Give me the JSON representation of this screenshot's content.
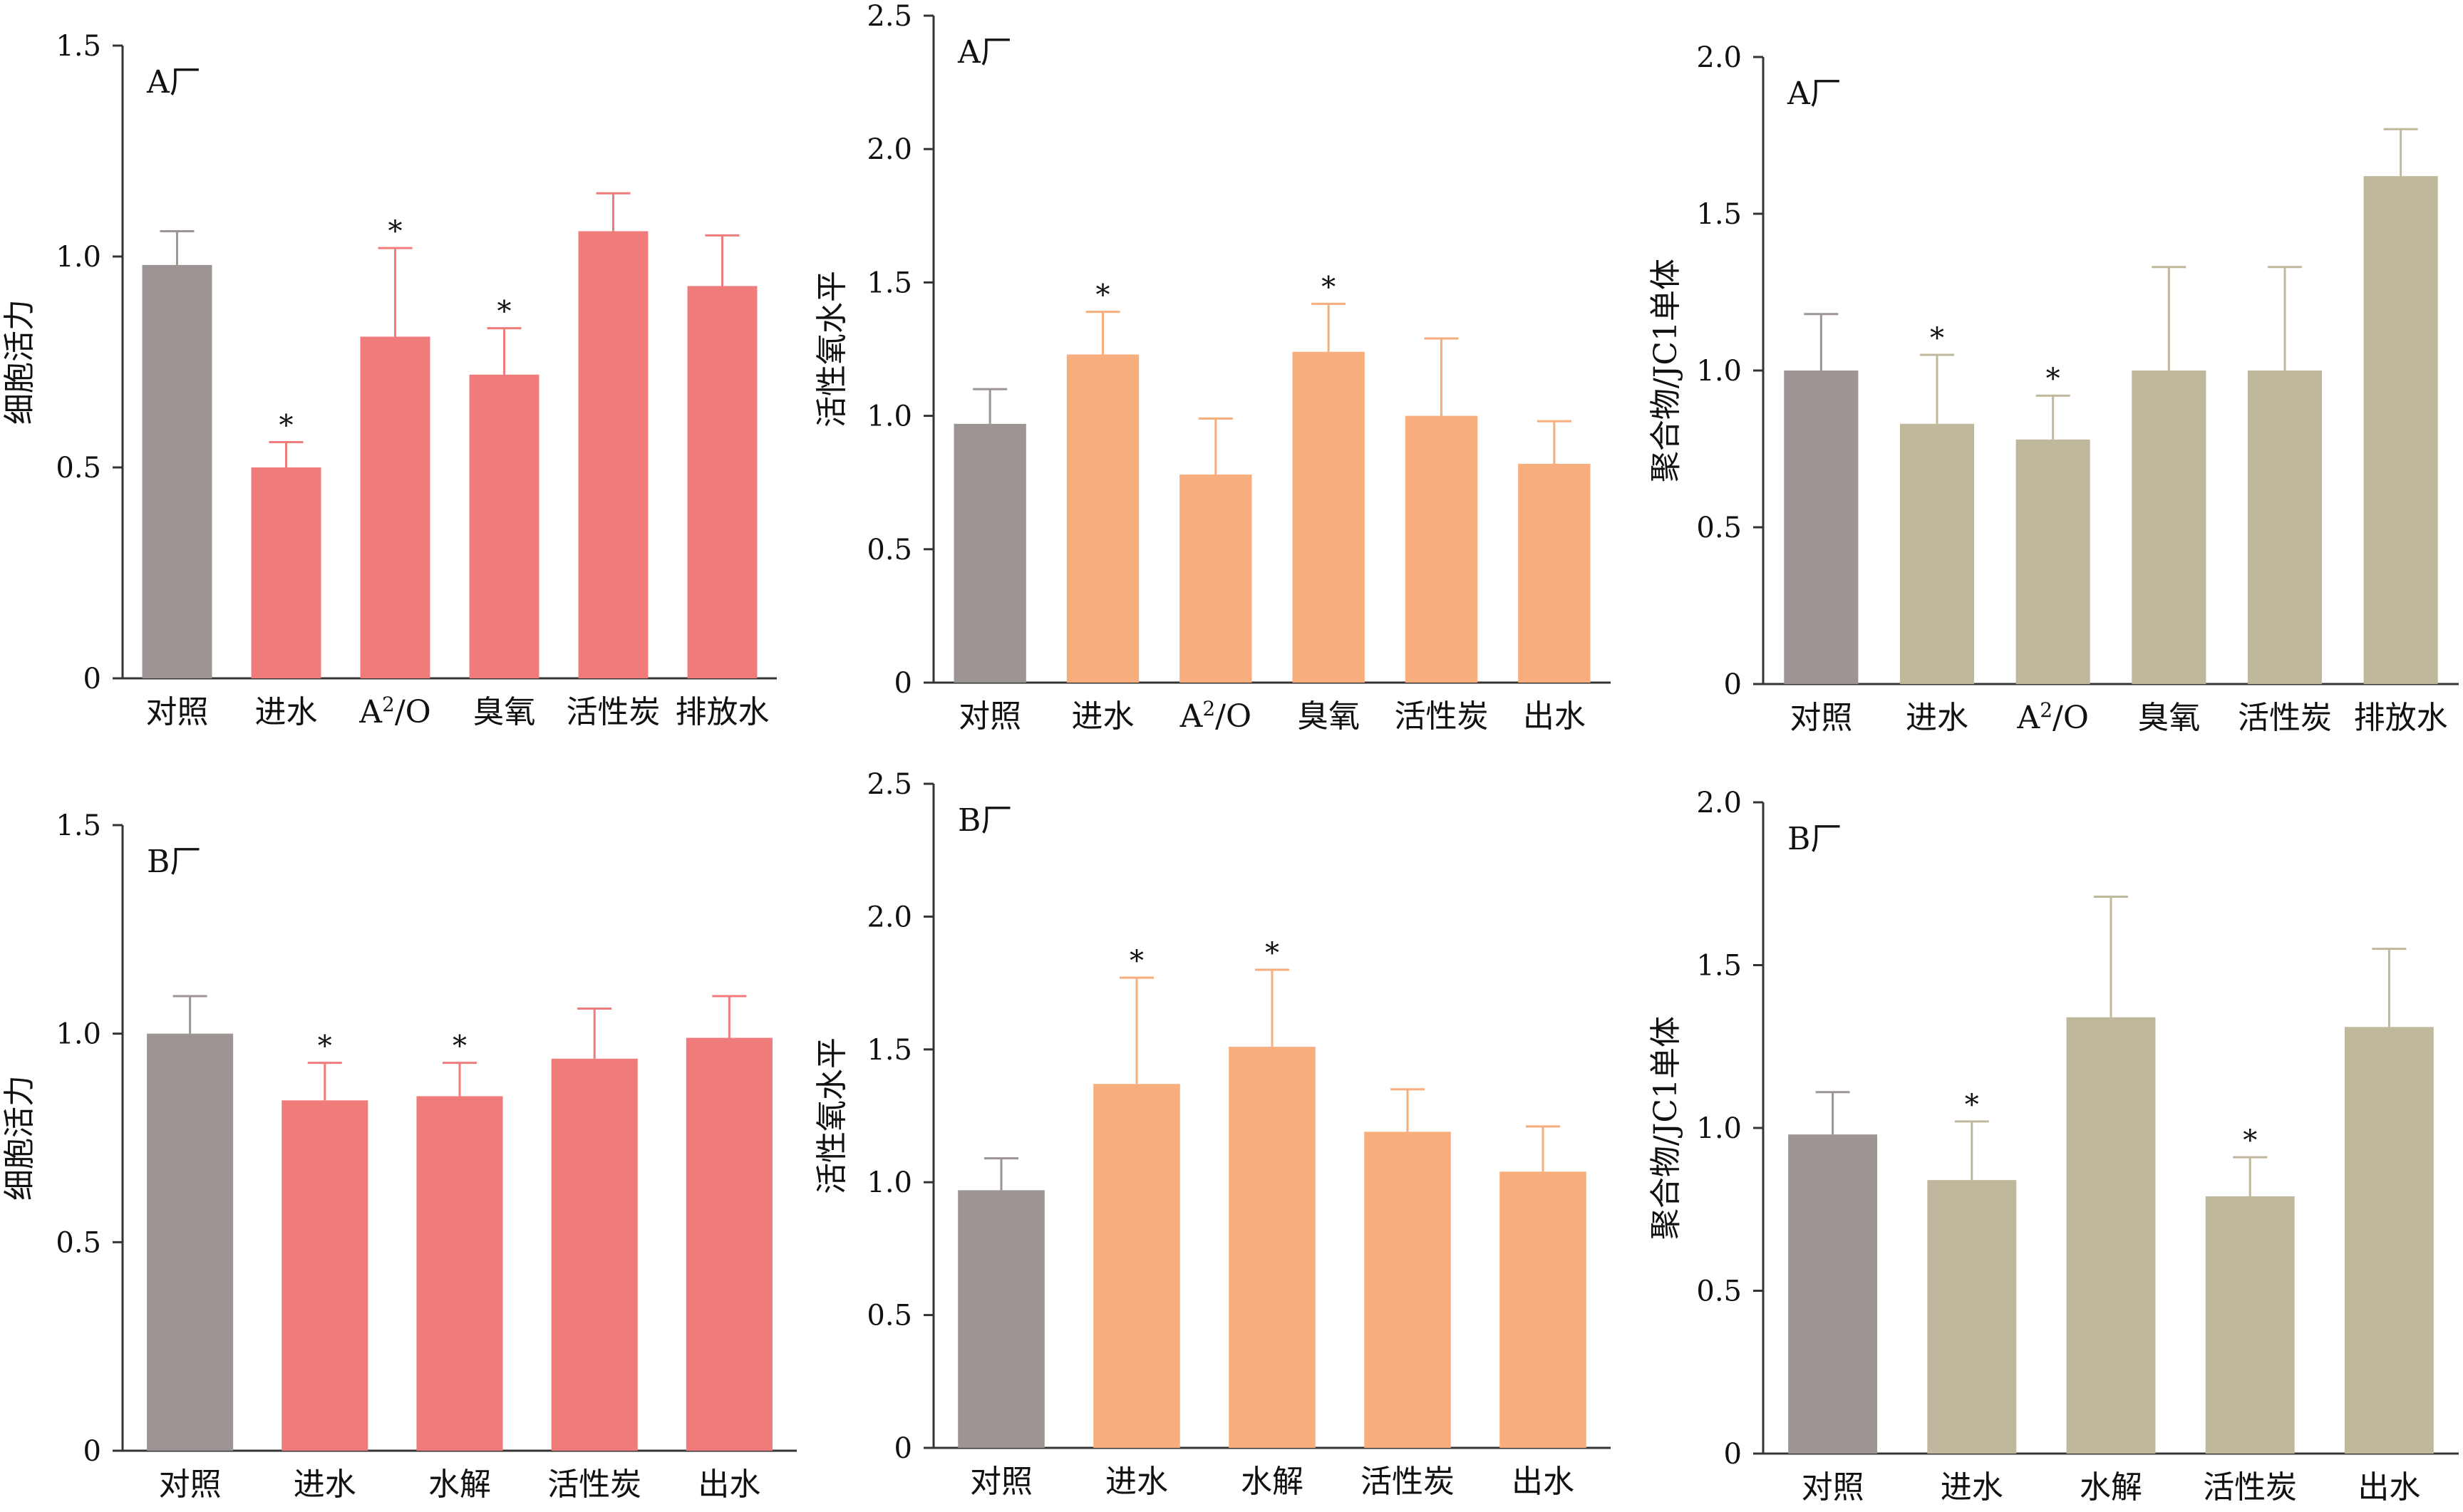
{
  "figure": {
    "colors": {
      "control": "#9c9593",
      "viability": "#f07b7b",
      "ros": "#f7ae7c",
      "jc1": "#c0b89c",
      "axis": "#333333",
      "errorbar_viability": "#f07b7b",
      "errorbar_ros": "#f7ae7c",
      "errorbar_jc1": "#c0b89c"
    }
  },
  "chart_data": [
    {
      "type": "bar",
      "panel_label": "A厂",
      "ylabel": "细胞活力",
      "ylim": [
        0,
        1.5
      ],
      "yticks": [
        "0",
        "0.5",
        "1.0",
        "1.5"
      ],
      "categories": [
        "对照",
        "进水",
        "A²/O",
        "臭氧",
        "活性炭",
        "排放水"
      ],
      "values": [
        0.98,
        0.5,
        0.81,
        0.72,
        1.06,
        0.93
      ],
      "errors": [
        0.08,
        0.06,
        0.21,
        0.11,
        0.09,
        0.12
      ],
      "significant": [
        false,
        true,
        true,
        true,
        false,
        false
      ],
      "series_color": "viability"
    },
    {
      "type": "bar",
      "panel_label": "A厂",
      "ylabel": "活性氧水平",
      "ylim": [
        0,
        2.5
      ],
      "yticks": [
        "0",
        "0.5",
        "1.0",
        "1.5",
        "2.0",
        "2.5"
      ],
      "categories": [
        "对照",
        "进水",
        "A²/O",
        "臭氧",
        "活性炭",
        "出水"
      ],
      "values": [
        0.97,
        1.23,
        0.78,
        1.24,
        1.0,
        0.82
      ],
      "errors": [
        0.13,
        0.16,
        0.21,
        0.18,
        0.29,
        0.16
      ],
      "significant": [
        false,
        true,
        false,
        true,
        false,
        false
      ],
      "series_color": "ros"
    },
    {
      "type": "bar",
      "panel_label": "A厂",
      "ylabel": "聚合物/JC1单体",
      "ylim": [
        0,
        2.0
      ],
      "yticks": [
        "0",
        "0.5",
        "1.0",
        "1.5",
        "2.0"
      ],
      "categories": [
        "对照",
        "进水",
        "A²/O",
        "臭氧",
        "活性炭",
        "排放水"
      ],
      "values": [
        1.0,
        0.83,
        0.78,
        1.0,
        1.0,
        1.62
      ],
      "errors": [
        0.18,
        0.22,
        0.14,
        0.33,
        0.33,
        0.15
      ],
      "significant": [
        false,
        true,
        true,
        false,
        false,
        false
      ],
      "series_color": "jc1"
    },
    {
      "type": "bar",
      "panel_label": "B厂",
      "ylabel": "细胞活力",
      "ylim": [
        0,
        1.5
      ],
      "yticks": [
        "0",
        "0.5",
        "1.0",
        "1.5"
      ],
      "categories": [
        "对照",
        "进水",
        "水解",
        "活性炭",
        "出水"
      ],
      "values": [
        1.0,
        0.84,
        0.85,
        0.94,
        0.99
      ],
      "errors": [
        0.09,
        0.09,
        0.08,
        0.12,
        0.1
      ],
      "significant": [
        false,
        true,
        true,
        false,
        false
      ],
      "series_color": "viability"
    },
    {
      "type": "bar",
      "panel_label": "B厂",
      "ylabel": "活性氧水平",
      "ylim": [
        0,
        2.5
      ],
      "yticks": [
        "0",
        "0.5",
        "1.0",
        "1.5",
        "2.0",
        "2.5"
      ],
      "categories": [
        "对照",
        "进水",
        "水解",
        "活性炭",
        "出水"
      ],
      "values": [
        0.97,
        1.37,
        1.51,
        1.19,
        1.04
      ],
      "errors": [
        0.12,
        0.4,
        0.29,
        0.16,
        0.17
      ],
      "significant": [
        false,
        true,
        true,
        false,
        false
      ],
      "series_color": "ros"
    },
    {
      "type": "bar",
      "panel_label": "B厂",
      "ylabel": "聚合物/JC1单体",
      "ylim": [
        0,
        2.0
      ],
      "yticks": [
        "0",
        "0.5",
        "1.0",
        "1.5",
        "2.0"
      ],
      "categories": [
        "对照",
        "进水",
        "水解",
        "活性炭",
        "出水"
      ],
      "values": [
        0.98,
        0.84,
        1.34,
        0.79,
        1.31
      ],
      "errors": [
        0.13,
        0.18,
        0.37,
        0.12,
        0.24
      ],
      "significant": [
        false,
        true,
        false,
        true,
        false
      ],
      "series_color": "jc1"
    }
  ],
  "significance_marker": "*"
}
